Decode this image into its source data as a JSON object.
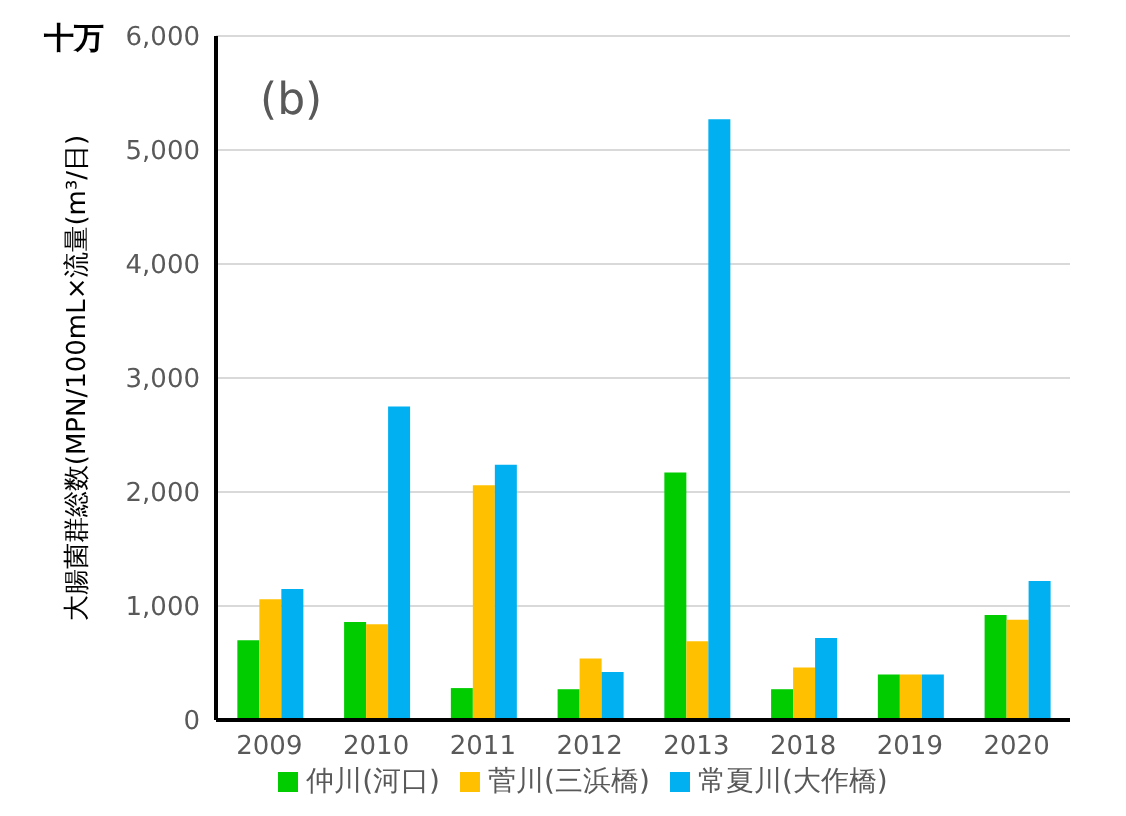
{
  "chart_data": {
    "type": "bar",
    "ylabel": "大腸菌群総数(MPN/100mL×流量(m³/日)",
    "annotations": [
      "十万",
      "(b)"
    ],
    "categories": [
      "2009",
      "2010",
      "2011",
      "2012",
      "2013",
      "2018",
      "2019",
      "2020"
    ],
    "series": [
      {
        "name": "仲川(河口)",
        "color": "#00cc00",
        "values": [
          700,
          860,
          280,
          270,
          2170,
          270,
          400,
          920
        ]
      },
      {
        "name": "菅川(三浜橋)",
        "color": "#ffc000",
        "values": [
          1060,
          840,
          2060,
          540,
          690,
          460,
          400,
          880
        ]
      },
      {
        "name": "常夏川(大作橋)",
        "color": "#00b0f0",
        "values": [
          1150,
          2750,
          2240,
          420,
          5270,
          720,
          400,
          1220
        ]
      }
    ],
    "ylim": [
      0,
      6000
    ],
    "yticks": [
      0,
      {
        "value": 1000,
        "label": "1,000"
      },
      {
        "value": 2000,
        "label": "2,000"
      },
      {
        "value": 3000,
        "label": "3,000"
      },
      {
        "value": 4000,
        "label": "4,000"
      },
      {
        "value": 5000,
        "label": "5,000"
      },
      {
        "value": 6000,
        "label": "6,000"
      }
    ],
    "grid": "y",
    "legend": "bottom"
  }
}
